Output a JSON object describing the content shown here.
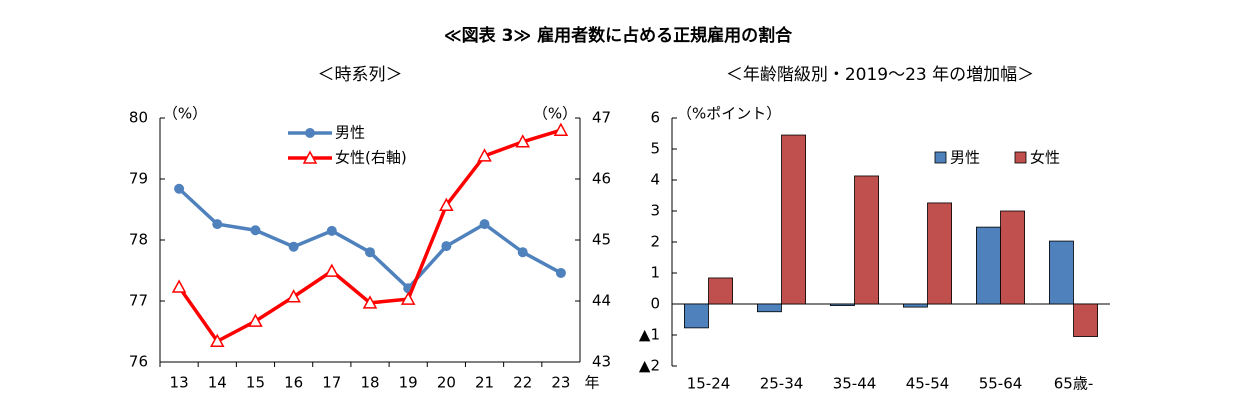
{
  "title": "≪図表 3≫ 雇用者数に占める正規雇用の割合",
  "chart_data": [
    {
      "type": "line",
      "title": "＜時系列＞",
      "y_label": "（%）",
      "y2_label": "（%）",
      "x_label": "年",
      "categories": [
        "13",
        "14",
        "15",
        "16",
        "17",
        "18",
        "19",
        "20",
        "21",
        "22",
        "23"
      ],
      "ylim": [
        76,
        80
      ],
      "yticks": [
        76,
        77,
        78,
        79,
        80
      ],
      "y2lim": [
        43,
        47
      ],
      "y2ticks": [
        43,
        44,
        45,
        46,
        47
      ],
      "series": [
        {
          "name": "男性",
          "color": "#4f81bd",
          "marker": "circle",
          "values": [
            78.84,
            78.26,
            78.16,
            77.89,
            78.15,
            77.8,
            77.21,
            77.9,
            78.26,
            77.8,
            77.46
          ]
        },
        {
          "name": "女性(右軸)",
          "color": "#ff0000",
          "marker": "triangle",
          "axis": "y2",
          "values": [
            44.23,
            43.34,
            43.67,
            44.07,
            44.49,
            43.97,
            44.03,
            45.57,
            46.38,
            46.61,
            46.8
          ]
        }
      ]
    },
    {
      "type": "bar",
      "title": "＜年齢階級別・2019～23 年の増加幅＞",
      "y_label": "（%ポイント）",
      "categories": [
        "15-24",
        "25-34",
        "35-44",
        "45-54",
        "55-64",
        "65歳-"
      ],
      "ylim": [
        -2,
        6
      ],
      "yticks": [
        {
          "value": -2,
          "label": "▲2"
        },
        {
          "value": -1,
          "label": "▲1"
        },
        0,
        1,
        2,
        3,
        4,
        5,
        6
      ],
      "series": [
        {
          "name": "男性",
          "color": "#4f81bd",
          "values": [
            -0.77,
            -0.25,
            -0.05,
            -0.1,
            2.48,
            2.03
          ]
        },
        {
          "name": "女性",
          "color": "#c0504d",
          "values": [
            0.84,
            5.45,
            4.13,
            3.26,
            3.0,
            -1.05
          ]
        }
      ]
    }
  ]
}
